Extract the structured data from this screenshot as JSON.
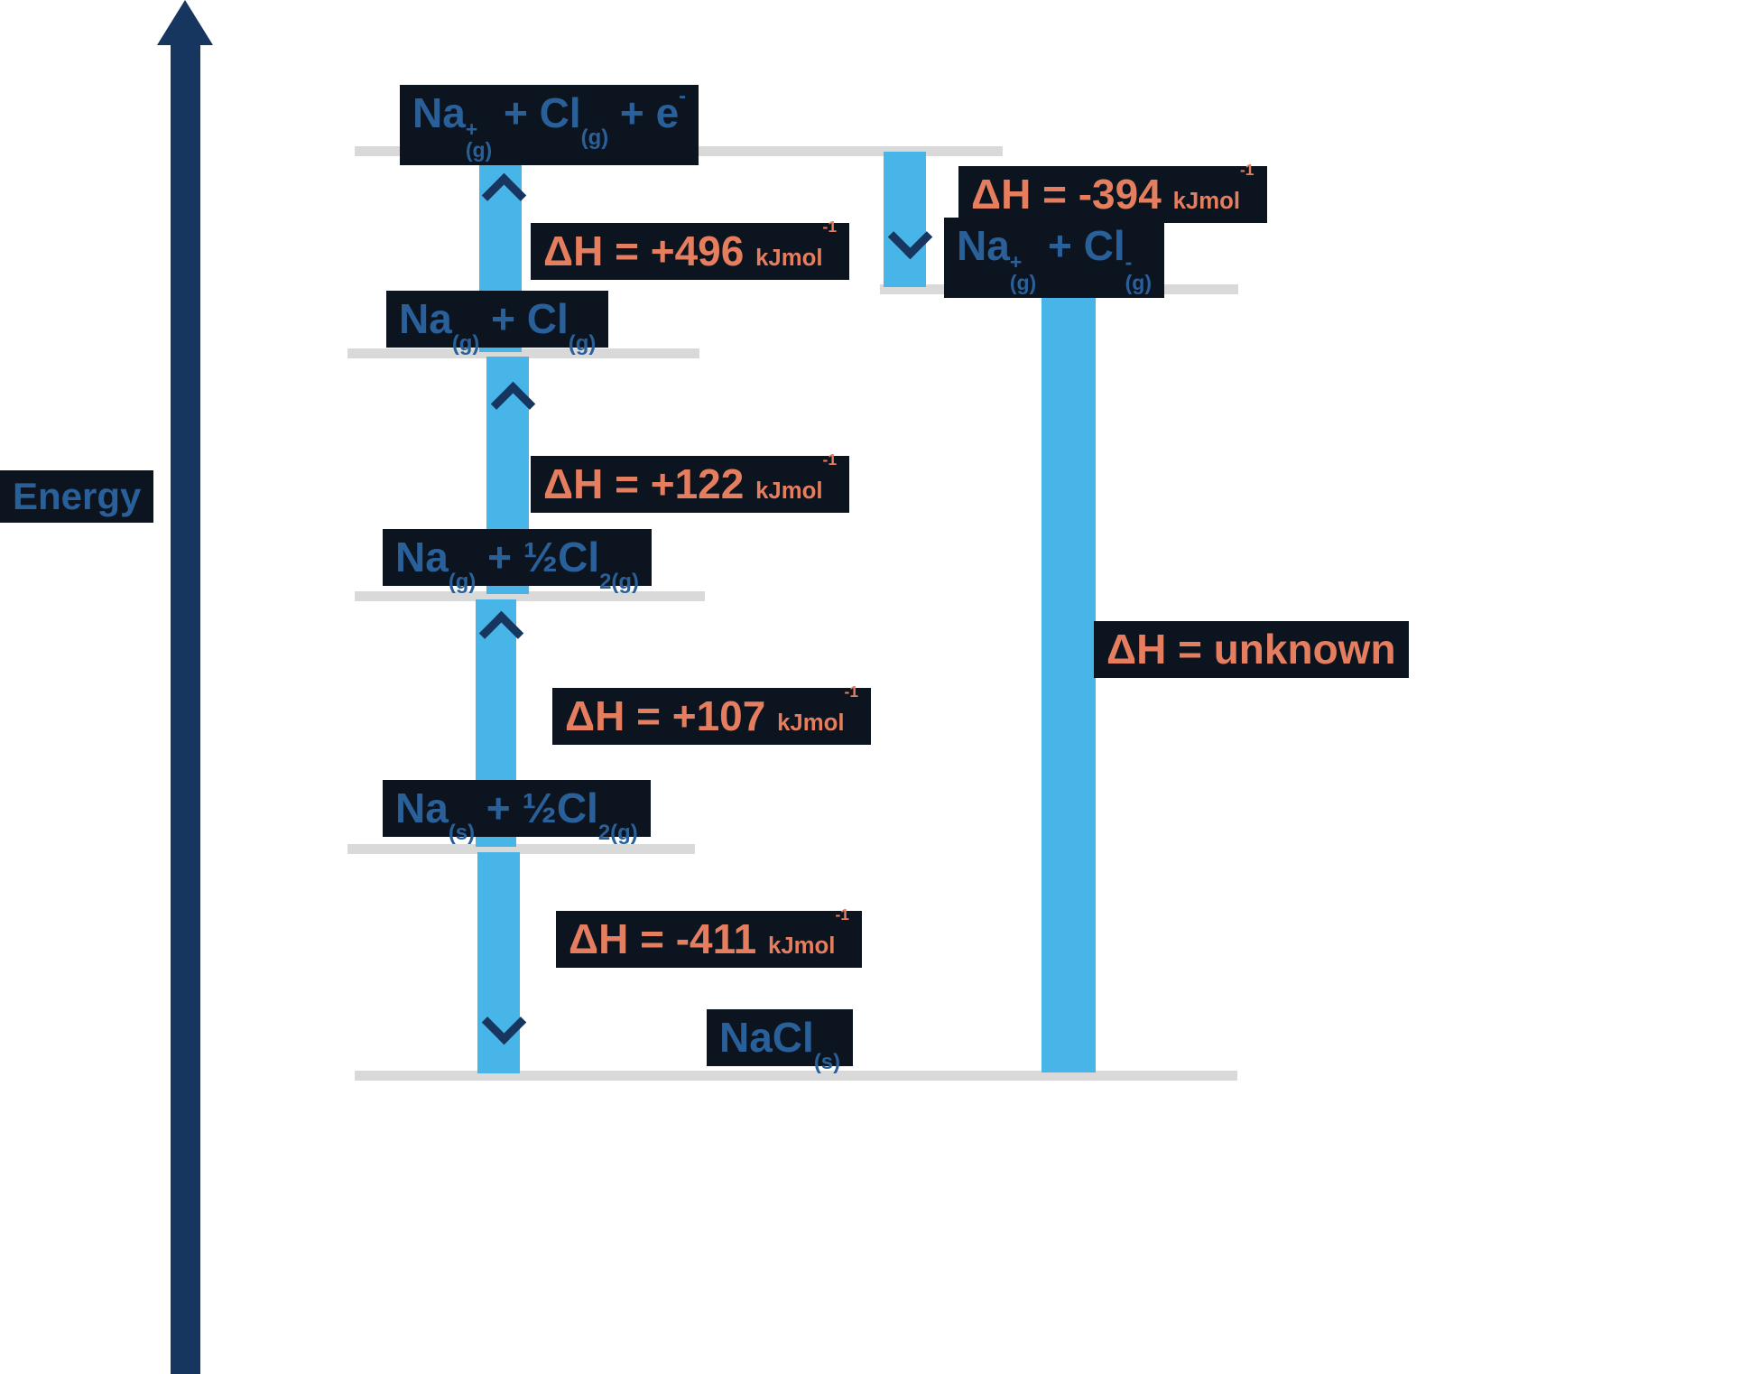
{
  "meta": {
    "description": "Born-Haber cycle energy level diagram for sodium chloride"
  },
  "colors": {
    "navy": "#16365f",
    "box": "#0c1420",
    "formula": "#2a6099",
    "orange": "#e57e5e",
    "arrow": "#47b5e8",
    "level": "#d9d9d9",
    "background": "#ffffff"
  },
  "axis": {
    "label": "Energy"
  },
  "levels": {
    "top": {
      "plain": "Na+(g) + Cl(g) + e-",
      "formula": [
        {
          "k": "t",
          "v": "Na"
        },
        {
          "k": "ss",
          "v": [
            "+",
            "(g)"
          ]
        },
        {
          "k": "t",
          "v": " + Cl"
        },
        {
          "k": "sub",
          "v": "(g)"
        },
        {
          "k": "t",
          "v": " + e"
        },
        {
          "k": "sup",
          "v": "-"
        }
      ]
    },
    "ions": {
      "plain": "Na+(g) + Cl-(g)",
      "formula": [
        {
          "k": "t",
          "v": "Na"
        },
        {
          "k": "ss",
          "v": [
            "+",
            "(g)"
          ]
        },
        {
          "k": "t",
          "v": " + Cl"
        },
        {
          "k": "ss",
          "v": [
            "-",
            "(g)"
          ]
        }
      ]
    },
    "na_g_cl_g": {
      "plain": "Na(g) + Cl(g)",
      "formula": [
        {
          "k": "t",
          "v": "Na"
        },
        {
          "k": "sub",
          "v": "(g)"
        },
        {
          "k": "t",
          "v": " + Cl"
        },
        {
          "k": "sub",
          "v": "(g)"
        }
      ]
    },
    "na_g_half_cl2": {
      "plain": "Na(g) + ½Cl2(g)",
      "formula": [
        {
          "k": "t",
          "v": "Na"
        },
        {
          "k": "sub",
          "v": "(g)"
        },
        {
          "k": "t",
          "v": " + ½Cl"
        },
        {
          "k": "sub",
          "v": "2(g)"
        }
      ]
    },
    "na_s_half_cl2": {
      "plain": "Na(s) + ½Cl2(g)",
      "formula": [
        {
          "k": "t",
          "v": "Na"
        },
        {
          "k": "sub",
          "v": "(s)"
        },
        {
          "k": "t",
          "v": " + ½Cl"
        },
        {
          "k": "sub",
          "v": "2(g)"
        }
      ]
    },
    "nacl_s": {
      "plain": "NaCl(s)",
      "formula": [
        {
          "k": "t",
          "v": "NaCl"
        },
        {
          "k": "sub",
          "v": "(s)"
        }
      ]
    }
  },
  "enthalpies": {
    "ionisation": {
      "value": "+496",
      "unit": "kJmol-1",
      "formula": [
        {
          "k": "t",
          "v": "ΔH = +496 "
        },
        {
          "k": "u",
          "v": "kJmol"
        },
        {
          "k": "us",
          "v": "-1"
        }
      ]
    },
    "electron_affinity": {
      "value": "-394",
      "unit": "kJmol-1",
      "formula": [
        {
          "k": "t",
          "v": "ΔH = -394 "
        },
        {
          "k": "u",
          "v": "kJmol"
        },
        {
          "k": "us",
          "v": "-1"
        }
      ]
    },
    "chlorine_atomisation": {
      "value": "+122",
      "unit": "kJmol-1",
      "formula": [
        {
          "k": "t",
          "v": "ΔH = +122 "
        },
        {
          "k": "u",
          "v": "kJmol"
        },
        {
          "k": "us",
          "v": "-1"
        }
      ]
    },
    "sodium_atomisation": {
      "value": "+107",
      "unit": "kJmol-1",
      "formula": [
        {
          "k": "t",
          "v": "ΔH = +107 "
        },
        {
          "k": "u",
          "v": "kJmol"
        },
        {
          "k": "us",
          "v": "-1"
        }
      ]
    },
    "formation": {
      "value": "-411",
      "unit": "kJmol-1",
      "formula": [
        {
          "k": "t",
          "v": "ΔH = -411 "
        },
        {
          "k": "u",
          "v": "kJmol"
        },
        {
          "k": "us",
          "v": "-1"
        }
      ]
    },
    "lattice": {
      "value": "unknown",
      "unit": "",
      "formula": [
        {
          "k": "t",
          "v": "ΔH = unknown"
        }
      ]
    }
  }
}
